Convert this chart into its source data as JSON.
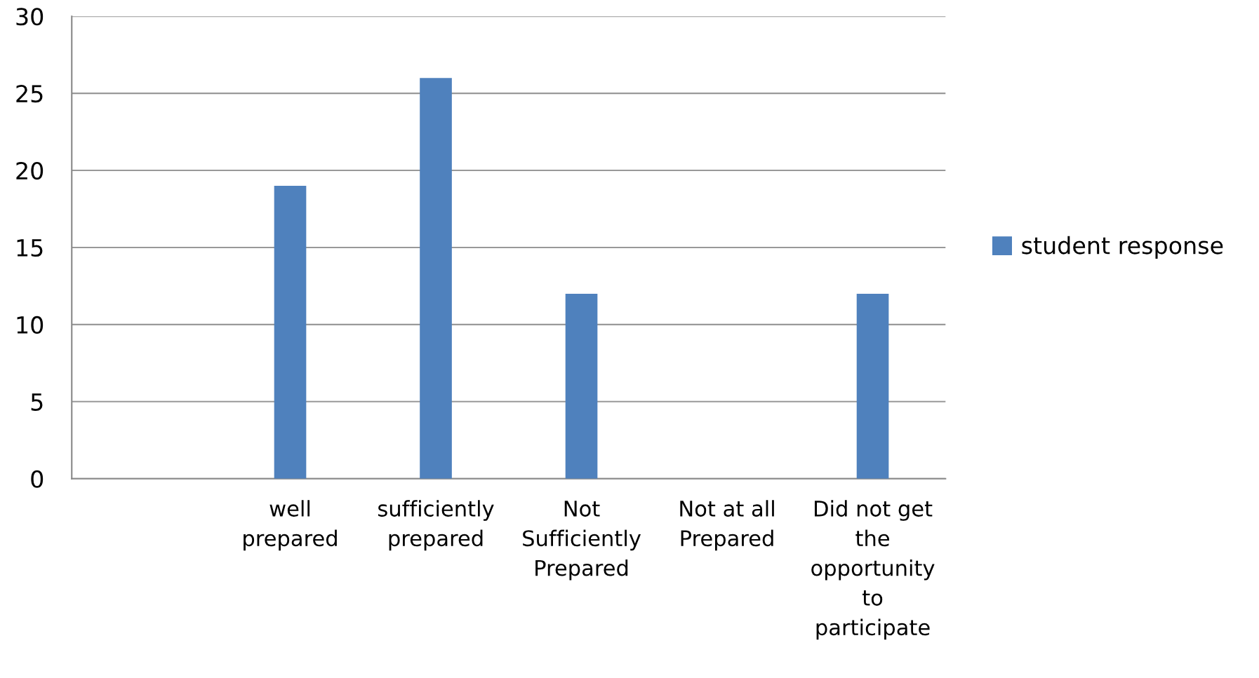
{
  "chart_data": {
    "type": "bar",
    "categories": [
      null,
      "well\nprepared",
      "sufficiently\nprepared",
      "Not\nSufficiently\nPrepared",
      "Not at all\nPrepared",
      "Did not get\nthe\nopportunity\nto\nparticipate"
    ],
    "series": [
      {
        "name": "student response",
        "color": "#4f81bd",
        "values": [
          null,
          19,
          26,
          12,
          0,
          12
        ]
      }
    ],
    "ylim": [
      0,
      30
    ],
    "yticks": [
      0,
      5,
      10,
      15,
      20,
      25,
      30
    ],
    "grid": "y",
    "legend": "right"
  }
}
